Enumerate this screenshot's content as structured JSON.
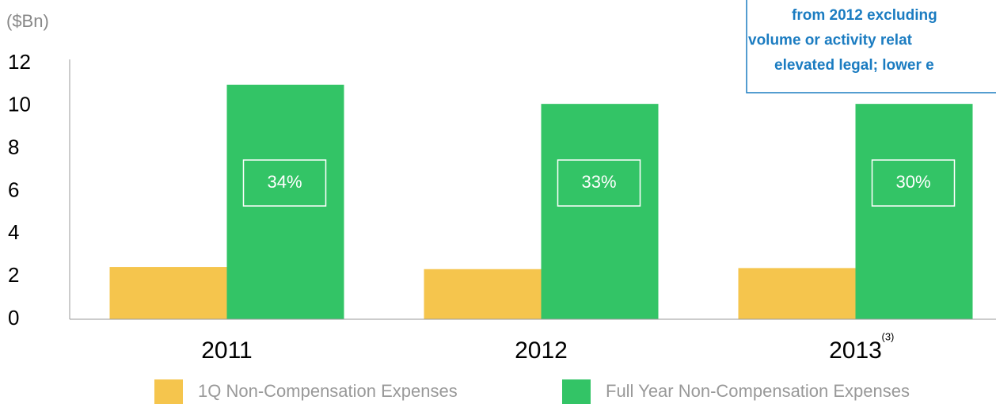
{
  "chart_data": {
    "type": "bar",
    "y_axis_label": "($Bn)",
    "categories": [
      "2011",
      "2012",
      "2013"
    ],
    "category_footnote": "(3)",
    "series": [
      {
        "name": "1Q Non-Compensation Expenses",
        "color": "#f5c54d",
        "values": [
          2.45,
          2.35,
          2.4
        ]
      },
      {
        "name": "Full Year Non-Compensation Expenses",
        "color": "#33c466",
        "values": [
          11.0,
          10.1,
          10.1
        ]
      }
    ],
    "bar_labels": [
      "34%",
      "33%",
      "30%"
    ],
    "callout": [
      "from 2012 excluding",
      "volume or activity relat",
      "elevated legal; lower e"
    ],
    "ylim": [
      0,
      12
    ],
    "yticks": [
      0,
      2,
      4,
      6,
      8,
      10,
      12
    ],
    "grid": false,
    "legend": "bottom"
  }
}
